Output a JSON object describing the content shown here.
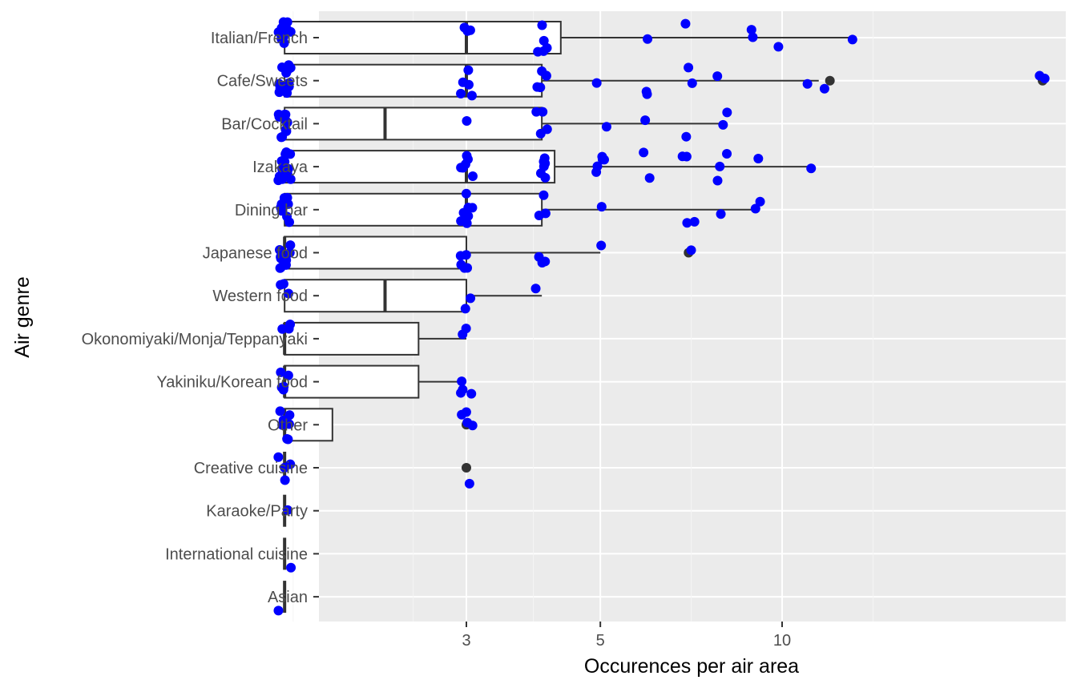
{
  "chart_data": {
    "type": "boxplot",
    "orientation": "horizontal",
    "x_scale": "log10",
    "xlabel": "Occurences per air area",
    "ylabel": "Air genre",
    "xlim": [
      1.1,
      30
    ],
    "x_ticks": [
      3,
      5,
      10
    ],
    "grid": true,
    "legend": "none",
    "colors": {
      "panel": "#ebebeb",
      "grid_major": "#ffffff",
      "grid_minor": "#f5f5f5",
      "box_fill": "#ffffff",
      "box_line": "#333333",
      "points": "#0000ff",
      "outliers": "#333333"
    },
    "categories": [
      "Italian/French",
      "Cafe/Sweets",
      "Bar/Cocktail",
      "Izakaya",
      "Dining bar",
      "Japanese food",
      "Western food",
      "Okonomiyaki/Monja/Teppanyaki",
      "Yakiniku/Korean food",
      "Other",
      "Creative cuisine",
      "Karaoke/Party",
      "International cuisine",
      "Asian"
    ],
    "boxes": [
      {
        "category": "Italian/French",
        "lower_whisker": 1.5,
        "q1": 1.5,
        "median": 3.0,
        "q3": 4.3,
        "upper_whisker": 13.0
      },
      {
        "category": "Cafe/Sweets",
        "lower_whisker": 1.5,
        "q1": 1.5,
        "median": 3.0,
        "q3": 4.0,
        "upper_whisker": 11.5
      },
      {
        "category": "Bar/Cocktail",
        "lower_whisker": 1.5,
        "q1": 1.5,
        "median": 2.2,
        "q3": 4.0,
        "upper_whisker": 8.0
      },
      {
        "category": "Izakaya",
        "lower_whisker": 1.5,
        "q1": 1.5,
        "median": 3.0,
        "q3": 4.2,
        "upper_whisker": 11.0
      },
      {
        "category": "Dining bar",
        "lower_whisker": 1.5,
        "q1": 1.5,
        "median": 3.0,
        "q3": 4.0,
        "upper_whisker": 9.0
      },
      {
        "category": "Japanese food",
        "lower_whisker": 1.5,
        "q1": 1.5,
        "median": 1.5,
        "q3": 3.0,
        "upper_whisker": 5.0
      },
      {
        "category": "Western food",
        "lower_whisker": 1.5,
        "q1": 1.5,
        "median": 2.2,
        "q3": 3.0,
        "upper_whisker": 4.0
      },
      {
        "category": "Okonomiyaki/Monja/Teppanyaki",
        "lower_whisker": 1.5,
        "q1": 1.5,
        "median": 1.5,
        "q3": 2.5,
        "upper_whisker": 3.0
      },
      {
        "category": "Yakiniku/Korean food",
        "lower_whisker": 1.5,
        "q1": 1.5,
        "median": 1.5,
        "q3": 2.5,
        "upper_whisker": 3.0
      },
      {
        "category": "Other",
        "lower_whisker": 1.5,
        "q1": 1.5,
        "median": 1.5,
        "q3": 1.8,
        "upper_whisker": 1.8
      },
      {
        "category": "Creative cuisine",
        "lower_whisker": 1.5,
        "q1": 1.5,
        "median": 1.5,
        "q3": 1.5,
        "upper_whisker": 1.5
      },
      {
        "category": "Karaoke/Party",
        "lower_whisker": 1.5,
        "q1": 1.5,
        "median": 1.5,
        "q3": 1.5,
        "upper_whisker": 1.5
      },
      {
        "category": "International cuisine",
        "lower_whisker": 1.5,
        "q1": 1.5,
        "median": 1.5,
        "q3": 1.5,
        "upper_whisker": 1.5
      },
      {
        "category": "Asian",
        "lower_whisker": 1.5,
        "q1": 1.5,
        "median": 1.5,
        "q3": 1.5,
        "upper_whisker": 1.5
      }
    ],
    "outliers": [
      {
        "category": "Cafe/Sweets",
        "values": [
          12,
          27
        ]
      },
      {
        "category": "Japanese food",
        "values": [
          7
        ]
      },
      {
        "category": "Other",
        "values": [
          3
        ]
      },
      {
        "category": "Creative cuisine",
        "values": [
          3
        ]
      }
    ],
    "points": [
      {
        "category": "Italian/French",
        "values": [
          1.5,
          1.5,
          1.5,
          1.5,
          1.5,
          1.5,
          1.5,
          1.5,
          1.5,
          1.5,
          3,
          3,
          3,
          4,
          4,
          4,
          4,
          4,
          6,
          7,
          9,
          9,
          10,
          13
        ]
      },
      {
        "category": "Cafe/Sweets",
        "values": [
          1.5,
          1.5,
          1.5,
          1.5,
          1.5,
          1.5,
          1.5,
          1.5,
          1.5,
          1.5,
          1.5,
          1.5,
          1.5,
          1.5,
          3,
          3,
          3,
          3,
          3,
          4,
          4,
          4,
          4,
          4,
          5,
          6,
          6,
          7,
          7,
          8,
          11,
          12,
          27,
          27
        ]
      },
      {
        "category": "Bar/Cocktail",
        "values": [
          1.5,
          1.5,
          1.5,
          1.5,
          1.5,
          1.5,
          1.5,
          1.5,
          1.5,
          1.5,
          3,
          4,
          4,
          4,
          4,
          5,
          6,
          7,
          8,
          8
        ]
      },
      {
        "category": "Izakaya",
        "values": [
          1.5,
          1.5,
          1.5,
          1.5,
          1.5,
          1.5,
          1.5,
          1.5,
          1.5,
          1.5,
          1.5,
          1.5,
          1.5,
          1.5,
          1.5,
          1.5,
          3,
          3,
          3,
          3,
          3,
          3,
          4,
          4,
          4,
          4,
          4,
          4,
          5,
          5,
          5,
          5,
          5,
          6,
          6,
          7,
          7,
          8,
          8,
          8,
          9,
          11
        ]
      },
      {
        "category": "Dining bar",
        "values": [
          1.5,
          1.5,
          1.5,
          1.5,
          1.5,
          1.5,
          1.5,
          1.5,
          1.5,
          1.5,
          1.5,
          1.5,
          3,
          3,
          3,
          3,
          3,
          3,
          3,
          4,
          4,
          4,
          5,
          7,
          7,
          8,
          9,
          9
        ]
      },
      {
        "category": "Japanese food",
        "values": [
          1.5,
          1.5,
          1.5,
          1.5,
          1.5,
          1.5,
          1.5,
          1.5,
          1.5,
          3,
          3,
          3,
          3,
          3,
          4,
          4,
          4,
          5,
          7
        ]
      },
      {
        "category": "Western food",
        "values": [
          1.5,
          1.5,
          1.5,
          3,
          3,
          4
        ]
      },
      {
        "category": "Okonomiyaki/Monja/Teppanyaki",
        "values": [
          1.5,
          1.5,
          1.5,
          3,
          3
        ]
      },
      {
        "category": "Yakiniku/Korean food",
        "values": [
          1.5,
          1.5,
          1.5,
          1.5,
          1.5,
          3,
          3,
          3,
          3
        ]
      },
      {
        "category": "Other",
        "values": [
          1.5,
          1.5,
          1.5,
          1.5,
          1.5,
          1.5,
          1.5,
          3,
          3,
          3,
          3
        ]
      },
      {
        "category": "Creative cuisine",
        "values": [
          1.5,
          1.5,
          1.5,
          1.5,
          3
        ]
      },
      {
        "category": "Karaoke/Party",
        "values": [
          1.5
        ]
      },
      {
        "category": "International cuisine",
        "values": [
          1.5
        ]
      },
      {
        "category": "Asian",
        "values": [
          1.5
        ]
      }
    ]
  }
}
